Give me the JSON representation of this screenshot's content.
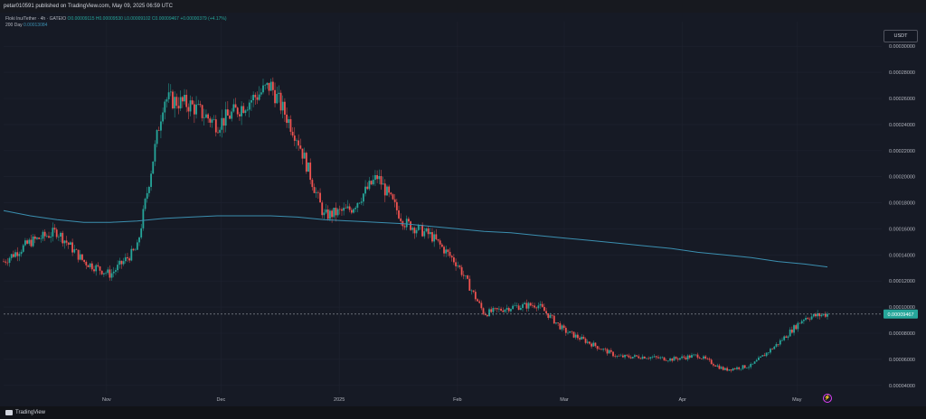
{
  "header": {
    "publish_text": "petar010591 published on TradingView.com, May 09, 2025 06:59 UTC"
  },
  "legend": {
    "symbol": "Floki Inu/Tether · 4h · GATEIO",
    "open": "0.00009115",
    "high": "0.00009530",
    "low": "0.00009102",
    "close": "0.00009467",
    "change": "+0.00000379 (+4.17%)",
    "ma_label": "200 Day",
    "ma_value": "0.00013084"
  },
  "axis": {
    "currency": "USDT",
    "last_price_label": "0.00009467"
  },
  "footer": {
    "brand": "TradingView"
  },
  "colors": {
    "up": "#26a69a",
    "down": "#ef5350",
    "ma": "#3b8fb0",
    "background": "#161a25",
    "last_price_tag": "#26a69a"
  },
  "chart_data": {
    "type": "line",
    "title": "Floki Inu/Tether · 4h · GATEIO",
    "xlabel": "",
    "ylabel": "",
    "x_tick_labels": [
      "Nov",
      "Dec",
      "2025",
      "Feb",
      "Mar",
      "Apr",
      "May"
    ],
    "y_tick_labels": [
      "0.00030000",
      "0.00028000",
      "0.00026000",
      "0.00024000",
      "0.00022000",
      "0.00020000",
      "0.00018000",
      "0.00016000",
      "0.00014000",
      "0.00012000",
      "0.00010000",
      "0.00008000",
      "0.00006000",
      "0.00004000"
    ],
    "ylim": [
      3.5e-05,
      0.000305
    ],
    "grid": true,
    "last_price": 9.467e-05,
    "x": [
      "2024-10-05",
      "2024-10-12",
      "2024-10-19",
      "2024-10-26",
      "2024-11-02",
      "2024-11-09",
      "2024-11-16",
      "2024-11-23",
      "2024-11-30",
      "2024-12-07",
      "2024-12-14",
      "2024-12-21",
      "2024-12-28",
      "2025-01-04",
      "2025-01-11",
      "2025-01-18",
      "2025-01-25",
      "2025-02-01",
      "2025-02-08",
      "2025-02-15",
      "2025-02-22",
      "2025-03-01",
      "2025-03-08",
      "2025-03-15",
      "2025-03-22",
      "2025-03-29",
      "2025-04-05",
      "2025-04-12",
      "2025-04-19",
      "2025-04-26",
      "2025-05-03",
      "2025-05-09"
    ],
    "series": [
      {
        "name": "Floki Inu/Tether",
        "values": [
          0.000135,
          0.00015,
          0.000158,
          0.000135,
          0.000125,
          0.000145,
          0.00026,
          0.000255,
          0.00024,
          0.000255,
          0.00027,
          0.00023,
          0.00017,
          0.000175,
          0.0002,
          0.000165,
          0.000155,
          0.000133,
          9.5e-05,
          0.0001,
          0.000102,
          8.2e-05,
          7.2e-05,
          6.2e-05,
          6.2e-05,
          6e-05,
          6.3e-05,
          5.2e-05,
          5.5e-05,
          7.2e-05,
          9.2e-05,
          9.47e-05
        ]
      },
      {
        "name": "200 Day",
        "values": [
          0.000174,
          0.00017,
          0.000167,
          0.000165,
          0.000165,
          0.000166,
          0.000168,
          0.000169,
          0.00017,
          0.00017,
          0.00017,
          0.000169,
          0.000167,
          0.000166,
          0.000165,
          0.000164,
          0.000162,
          0.00016,
          0.000158,
          0.000157,
          0.000155,
          0.000153,
          0.000151,
          0.000149,
          0.000147,
          0.000145,
          0.000142,
          0.00014,
          0.000138,
          0.000135,
          0.000133,
          0.00013084
        ]
      }
    ]
  }
}
